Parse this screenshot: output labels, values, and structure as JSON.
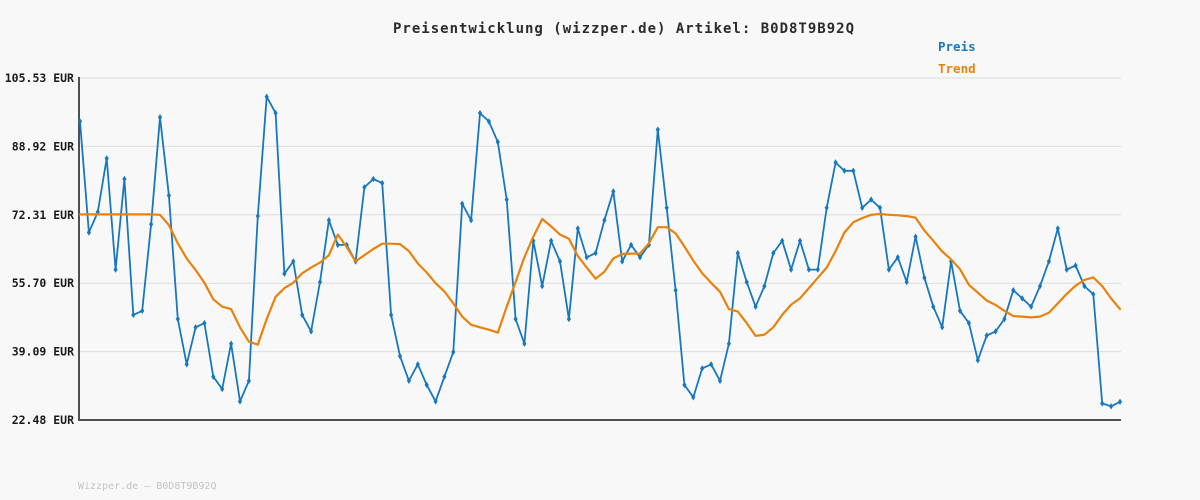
{
  "page": {
    "title": "Preisentwicklung (wizzper.de) Artikel: B0D8T9B92Q",
    "footer": "Wizzper.de — B0D8T9B92Q"
  },
  "legend": {
    "preis_label": "Preis",
    "trend_label": "Trend",
    "position": "top-right"
  },
  "colors": {
    "preis": "#1878be",
    "trend": "#e8820c",
    "axis": "#4f4f4f",
    "grid": "#dcdcdc",
    "title_text": "#2b2b2b",
    "tick_text": "#1a1a1a",
    "footer_text": "#c4c4c4",
    "background": "#f8f8f8"
  },
  "chart_data": {
    "type": "line",
    "title": "Preisentwicklung (wizzper.de) Artikel: B0D8T9B92Q",
    "currency": "EUR",
    "yticks": [
      "105.53 EUR",
      "88.92 EUR",
      "72.31 EUR",
      "55.70 EUR",
      "39.09 EUR",
      "22.48 EUR"
    ],
    "ytick_values": [
      105.53,
      88.92,
      72.31,
      55.7,
      39.09,
      22.48
    ],
    "ylim": [
      22.48,
      105.53
    ],
    "xticks": [],
    "x_count": 118,
    "grid": "horizontal",
    "legend_position": "top-right",
    "series": [
      {
        "name": "Preis",
        "color": "#1878be",
        "marker": "thin-diamond",
        "values": [
          95,
          68,
          73,
          86,
          59,
          81,
          48,
          49,
          70,
          96,
          77,
          47,
          36,
          45,
          46,
          33,
          30,
          41,
          27,
          32,
          72,
          101,
          97,
          58,
          61,
          48,
          44,
          56,
          71,
          65,
          65,
          61,
          79,
          81,
          80,
          48,
          38,
          32,
          36,
          31,
          27,
          33,
          39,
          75,
          71,
          97,
          95,
          90,
          76,
          47,
          41,
          66,
          55,
          66,
          61,
          47,
          69,
          62,
          63,
          71,
          78,
          61,
          65,
          62,
          65,
          93,
          74,
          54,
          31,
          28,
          35,
          36,
          32,
          41,
          63,
          56,
          50,
          55,
          63,
          66,
          59,
          66,
          59,
          59,
          74,
          85,
          83,
          83,
          74,
          76,
          74,
          59,
          62,
          56,
          67,
          57,
          50,
          45,
          61,
          49,
          46,
          37,
          43,
          44,
          47,
          54,
          52,
          50,
          55,
          61,
          69,
          59,
          60,
          55,
          53,
          26.5,
          25.8,
          26.9
        ]
      },
      {
        "name": "Trend",
        "color": "#e8820c",
        "marker": "none",
        "values": [
          72.4,
          72.4,
          72.4,
          72.4,
          72.4,
          72.4,
          72.4,
          72.4,
          72.4,
          72.3,
          69.8,
          65.4,
          61.7,
          58.9,
          55.8,
          51.8,
          50,
          49.4,
          45,
          41.5,
          40.8,
          47,
          52.4,
          54.5,
          55.8,
          58.1,
          59.5,
          60.7,
          62.5,
          67.5,
          64.5,
          61,
          62.5,
          64,
          65.3,
          65.3,
          65.2,
          63.5,
          60.5,
          58.3,
          55.7,
          53.7,
          50.8,
          47.6,
          45.6,
          45,
          44.4,
          43.7,
          50,
          56,
          62,
          67,
          71.3,
          69.5,
          67.5,
          66.5,
          62.3,
          59.5,
          56.8,
          58.5,
          61.7,
          62.8,
          62.9,
          62.9,
          65.4,
          69.3,
          69.3,
          67.8,
          64.6,
          61.2,
          58.1,
          55.8,
          53.6,
          49.4,
          48.8,
          46,
          42.9,
          43.2,
          45,
          48,
          50.5,
          52,
          54.5,
          57,
          59.5,
          63.5,
          68,
          70.5,
          71.5,
          72.3,
          72.5,
          72.3,
          72.2,
          72,
          71.6,
          68.5,
          66,
          63.4,
          61.5,
          59.1,
          55.3,
          53.4,
          51.5,
          50.4,
          49,
          47.7,
          47.6,
          47.4,
          47.6,
          48.5,
          50.8,
          53.1,
          55.1,
          56.5,
          57.1,
          55,
          52,
          49.4
        ]
      }
    ]
  }
}
